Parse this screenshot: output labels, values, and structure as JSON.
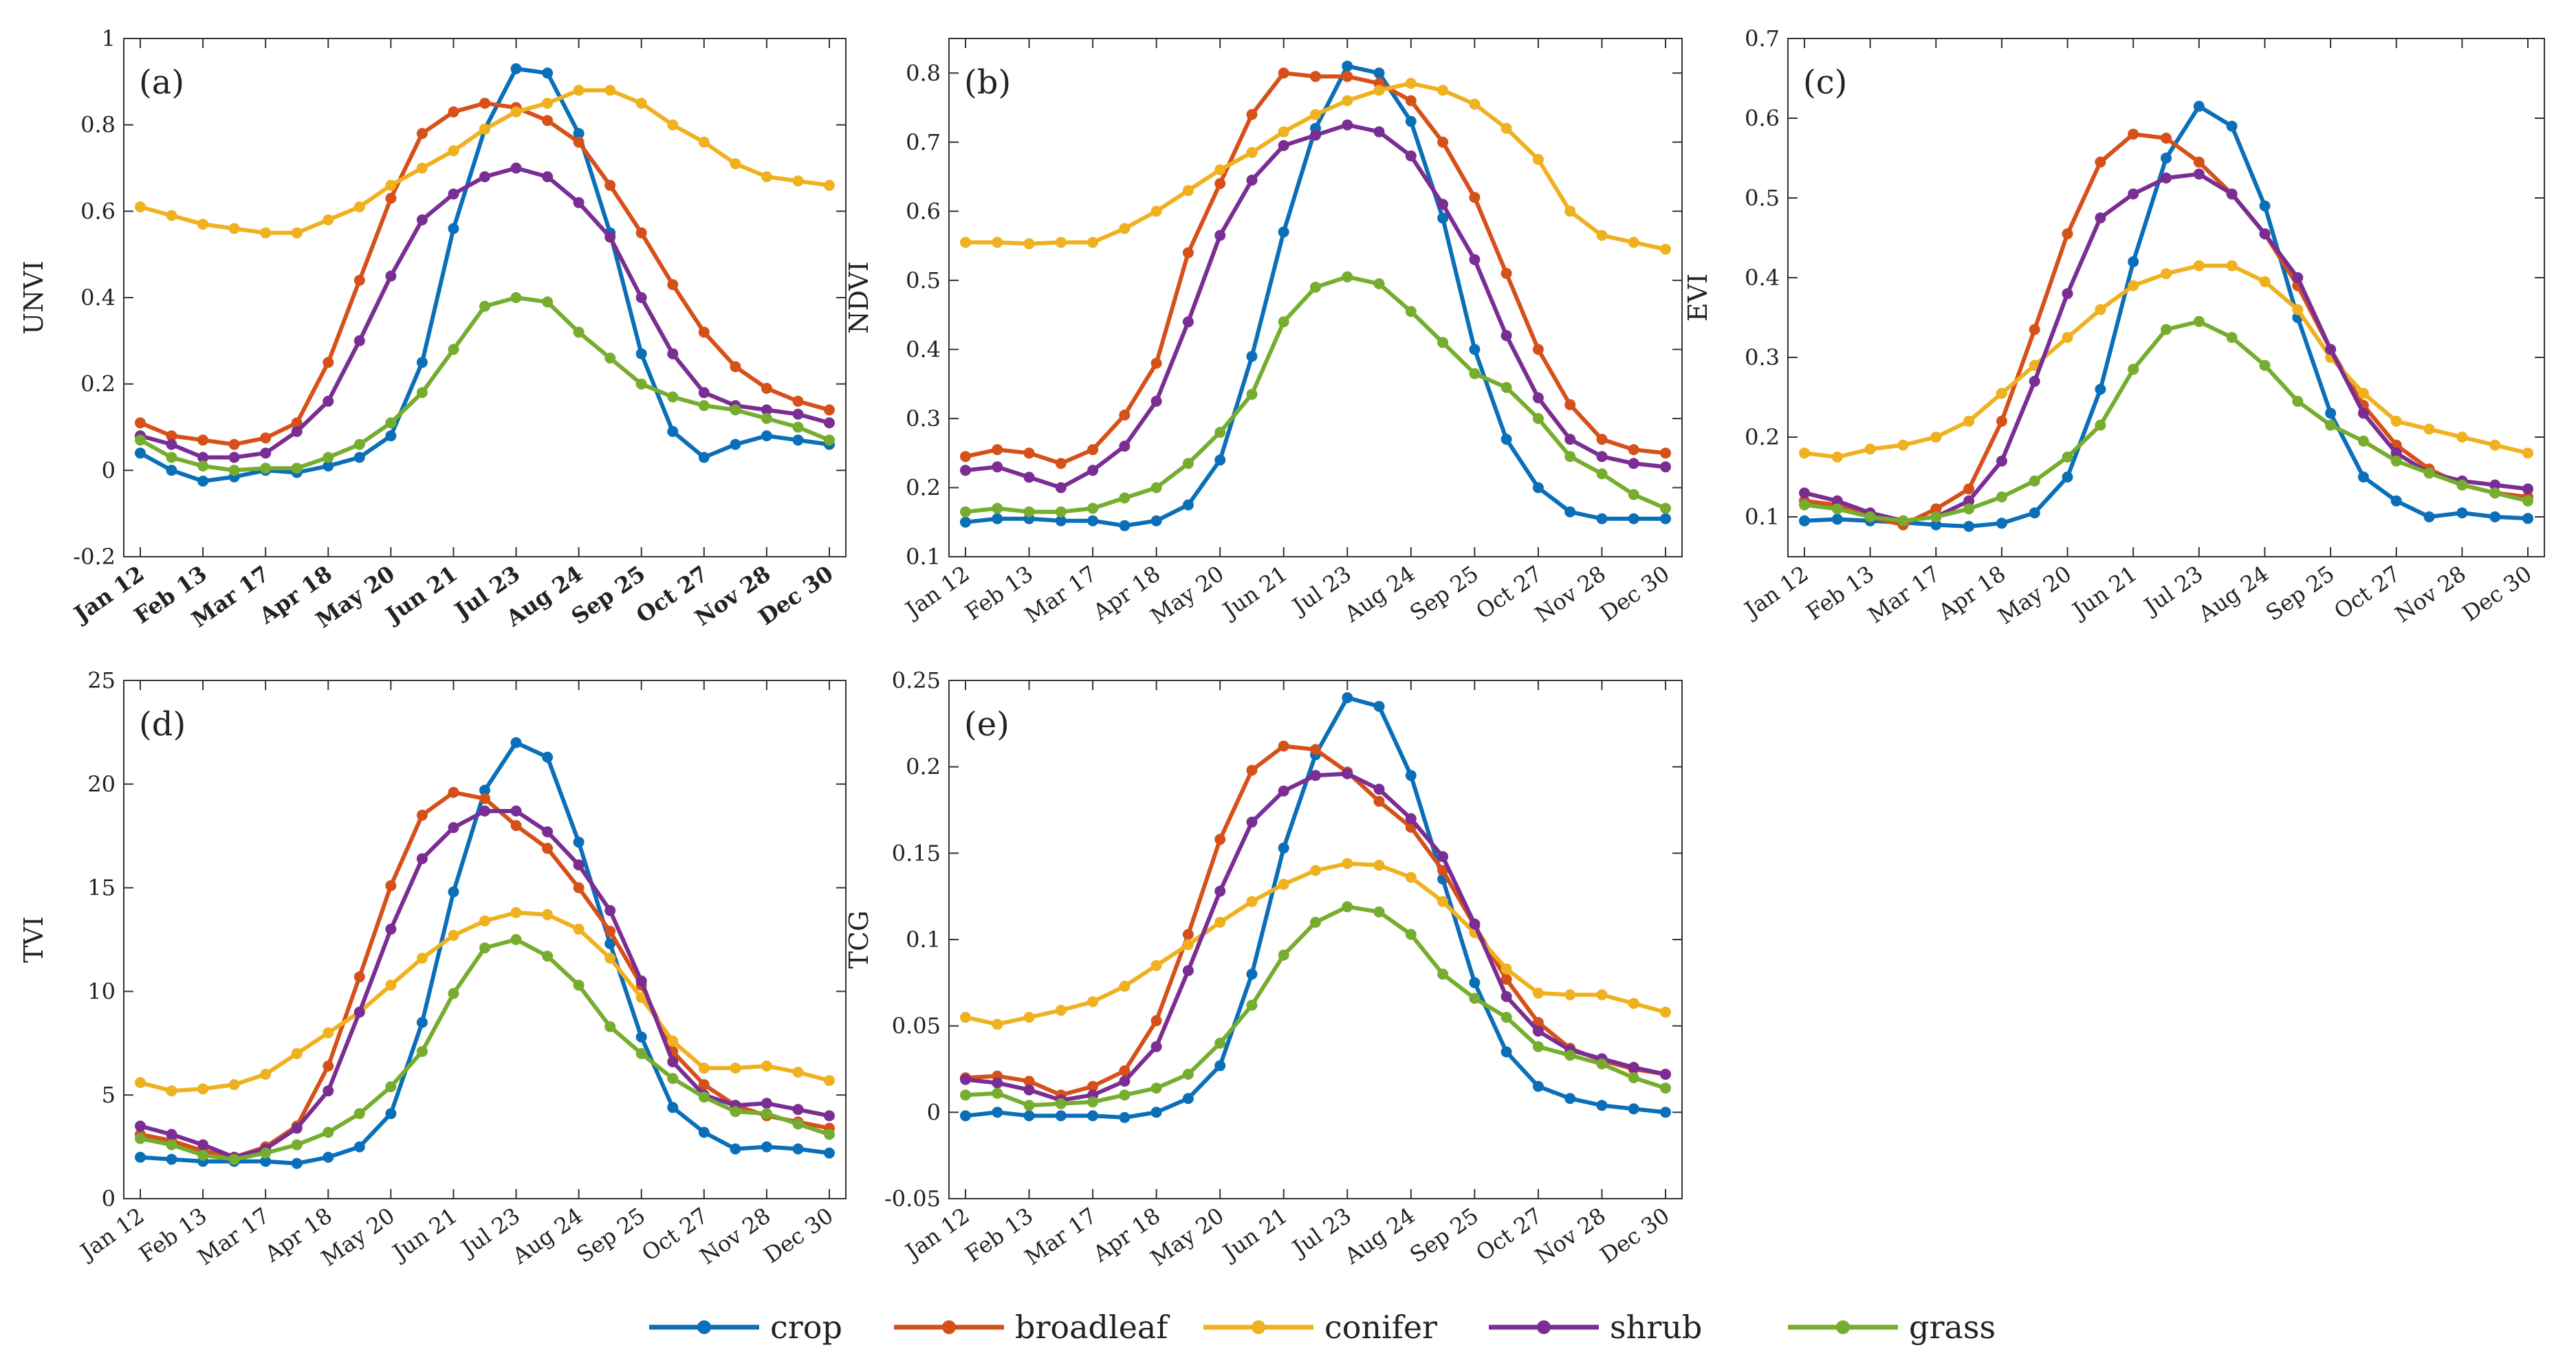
{
  "x_labels": [
    "Jan 12",
    "Feb 13",
    "Mar 17",
    "Apr 18",
    "May 20",
    "Jun 21",
    "Jul 23",
    "Aug 24",
    "Sep 25",
    "Oct 27",
    "Nov 28",
    "Dec 30"
  ],
  "series_meta": [
    {
      "key": "crop",
      "name": "crop",
      "color": "#0a6fb8"
    },
    {
      "key": "broadleaf",
      "name": "broadleaf",
      "color": "#d6501a"
    },
    {
      "key": "conifer",
      "name": "conifer",
      "color": "#efb11f"
    },
    {
      "key": "shrub",
      "name": "shrub",
      "color": "#7a2d92"
    },
    {
      "key": "grass",
      "name": "grass",
      "color": "#76ad2f"
    }
  ],
  "chart_data": [
    {
      "type": "line",
      "label": "(a)",
      "ylabel": "UNVI",
      "ylim": [
        -0.2,
        1
      ],
      "yticks": [
        -0.2,
        0,
        0.2,
        0.4,
        0.6,
        0.8,
        1
      ],
      "ytick_labels": [
        "-0.2",
        "0",
        "0.2",
        "0.4",
        "0.6",
        "0.8",
        "1"
      ],
      "bold_xticks": true,
      "series": {
        "crop": [
          0.04,
          0.0,
          -0.025,
          -0.015,
          0.0,
          -0.005,
          0.01,
          0.03,
          0.08,
          0.25,
          0.56,
          0.79,
          0.93,
          0.92,
          0.78,
          0.55,
          0.27,
          0.09,
          0.03,
          0.06,
          0.08,
          0.07,
          0.06
        ],
        "broadleaf": [
          0.11,
          0.08,
          0.07,
          0.06,
          0.075,
          0.11,
          0.25,
          0.44,
          0.63,
          0.78,
          0.83,
          0.85,
          0.84,
          0.81,
          0.76,
          0.66,
          0.55,
          0.43,
          0.32,
          0.24,
          0.19,
          0.16,
          0.14
        ],
        "conifer": [
          0.61,
          0.59,
          0.57,
          0.56,
          0.55,
          0.55,
          0.58,
          0.61,
          0.66,
          0.7,
          0.74,
          0.79,
          0.83,
          0.85,
          0.88,
          0.88,
          0.85,
          0.8,
          0.76,
          0.71,
          0.68,
          0.67,
          0.66
        ],
        "shrub": [
          0.08,
          0.06,
          0.03,
          0.03,
          0.04,
          0.09,
          0.16,
          0.3,
          0.45,
          0.58,
          0.64,
          0.68,
          0.7,
          0.68,
          0.62,
          0.54,
          0.4,
          0.27,
          0.18,
          0.15,
          0.14,
          0.13,
          0.11
        ],
        "grass": [
          0.07,
          0.03,
          0.01,
          0.0,
          0.005,
          0.005,
          0.03,
          0.06,
          0.11,
          0.18,
          0.28,
          0.38,
          0.4,
          0.39,
          0.32,
          0.26,
          0.2,
          0.17,
          0.15,
          0.14,
          0.12,
          0.1,
          0.07
        ]
      }
    },
    {
      "type": "line",
      "label": "(b)",
      "ylabel": "NDVI",
      "ylim": [
        0.1,
        0.85
      ],
      "yticks": [
        0.1,
        0.2,
        0.3,
        0.4,
        0.5,
        0.6,
        0.7,
        0.8
      ],
      "ytick_labels": [
        "0.1",
        "0.2",
        "0.3",
        "0.4",
        "0.5",
        "0.6",
        "0.7",
        "0.8"
      ],
      "bold_xticks": false,
      "series": {
        "crop": [
          0.15,
          0.155,
          0.155,
          0.152,
          0.152,
          0.145,
          0.152,
          0.175,
          0.24,
          0.39,
          0.57,
          0.72,
          0.81,
          0.8,
          0.73,
          0.59,
          0.4,
          0.27,
          0.2,
          0.165,
          0.155,
          0.155,
          0.155
        ],
        "broadleaf": [
          0.245,
          0.255,
          0.25,
          0.235,
          0.255,
          0.305,
          0.38,
          0.54,
          0.64,
          0.74,
          0.8,
          0.795,
          0.795,
          0.785,
          0.76,
          0.7,
          0.62,
          0.51,
          0.4,
          0.32,
          0.27,
          0.255,
          0.25
        ],
        "conifer": [
          0.555,
          0.555,
          0.553,
          0.555,
          0.555,
          0.575,
          0.6,
          0.63,
          0.66,
          0.685,
          0.715,
          0.74,
          0.76,
          0.775,
          0.785,
          0.775,
          0.755,
          0.72,
          0.675,
          0.6,
          0.565,
          0.555,
          0.545
        ],
        "shrub": [
          0.225,
          0.23,
          0.215,
          0.2,
          0.225,
          0.26,
          0.325,
          0.44,
          0.565,
          0.645,
          0.695,
          0.71,
          0.725,
          0.715,
          0.68,
          0.61,
          0.53,
          0.42,
          0.33,
          0.27,
          0.245,
          0.235,
          0.23
        ],
        "grass": [
          0.165,
          0.17,
          0.165,
          0.165,
          0.17,
          0.185,
          0.2,
          0.235,
          0.28,
          0.335,
          0.44,
          0.49,
          0.505,
          0.495,
          0.455,
          0.41,
          0.365,
          0.345,
          0.3,
          0.245,
          0.22,
          0.19,
          0.17
        ]
      }
    },
    {
      "type": "line",
      "label": "(c)",
      "ylabel": "EVI",
      "ylim": [
        0.05,
        0.7
      ],
      "yticks": [
        0.1,
        0.2,
        0.3,
        0.4,
        0.5,
        0.6,
        0.7
      ],
      "ytick_labels": [
        "0.1",
        "0.2",
        "0.3",
        "0.4",
        "0.5",
        "0.6",
        "0.7"
      ],
      "bold_xticks": false,
      "series": {
        "crop": [
          0.095,
          0.097,
          0.095,
          0.093,
          0.09,
          0.088,
          0.092,
          0.105,
          0.15,
          0.26,
          0.42,
          0.55,
          0.615,
          0.59,
          0.49,
          0.35,
          0.23,
          0.15,
          0.12,
          0.1,
          0.105,
          0.1,
          0.098
        ],
        "broadleaf": [
          0.12,
          0.115,
          0.1,
          0.09,
          0.11,
          0.135,
          0.22,
          0.335,
          0.455,
          0.545,
          0.58,
          0.575,
          0.545,
          0.505,
          0.455,
          0.39,
          0.31,
          0.24,
          0.19,
          0.16,
          0.14,
          0.13,
          0.125
        ],
        "conifer": [
          0.18,
          0.175,
          0.185,
          0.19,
          0.2,
          0.22,
          0.255,
          0.29,
          0.325,
          0.36,
          0.39,
          0.405,
          0.415,
          0.415,
          0.395,
          0.36,
          0.3,
          0.255,
          0.22,
          0.21,
          0.2,
          0.19,
          0.18
        ],
        "shrub": [
          0.13,
          0.12,
          0.105,
          0.095,
          0.1,
          0.12,
          0.17,
          0.27,
          0.38,
          0.475,
          0.505,
          0.525,
          0.53,
          0.505,
          0.455,
          0.4,
          0.31,
          0.23,
          0.18,
          0.155,
          0.145,
          0.14,
          0.135
        ],
        "grass": [
          0.115,
          0.11,
          0.1,
          0.095,
          0.1,
          0.11,
          0.125,
          0.145,
          0.175,
          0.215,
          0.285,
          0.335,
          0.345,
          0.325,
          0.29,
          0.245,
          0.215,
          0.195,
          0.17,
          0.155,
          0.14,
          0.13,
          0.12
        ]
      }
    },
    {
      "type": "line",
      "label": "(d)",
      "ylabel": "TVI",
      "ylim": [
        0,
        25
      ],
      "yticks": [
        0,
        5,
        10,
        15,
        20,
        25
      ],
      "ytick_labels": [
        "0",
        "5",
        "10",
        "15",
        "20",
        "25"
      ],
      "bold_xticks": false,
      "series": {
        "crop": [
          2.0,
          1.9,
          1.8,
          1.8,
          1.8,
          1.7,
          2.0,
          2.5,
          4.1,
          8.5,
          14.8,
          19.7,
          22.0,
          21.3,
          17.2,
          12.3,
          7.8,
          4.4,
          3.2,
          2.4,
          2.5,
          2.4,
          2.2
        ],
        "broadleaf": [
          3.1,
          2.8,
          2.3,
          2.0,
          2.5,
          3.5,
          6.4,
          10.7,
          15.1,
          18.5,
          19.6,
          19.3,
          18.0,
          16.9,
          15.0,
          12.9,
          10.3,
          7.1,
          5.5,
          4.5,
          4.0,
          3.7,
          3.4
        ],
        "conifer": [
          5.6,
          5.2,
          5.3,
          5.5,
          6.0,
          7.0,
          8.0,
          9.0,
          10.3,
          11.6,
          12.7,
          13.4,
          13.8,
          13.7,
          13.0,
          11.6,
          9.7,
          7.6,
          6.3,
          6.3,
          6.4,
          6.1,
          5.7
        ],
        "shrub": [
          3.5,
          3.1,
          2.6,
          2.0,
          2.4,
          3.4,
          5.2,
          9.0,
          13.0,
          16.4,
          17.9,
          18.7,
          18.7,
          17.7,
          16.1,
          13.9,
          10.5,
          6.6,
          5.0,
          4.5,
          4.6,
          4.3,
          4.0
        ],
        "grass": [
          2.9,
          2.6,
          2.1,
          1.9,
          2.2,
          2.6,
          3.2,
          4.1,
          5.4,
          7.1,
          9.9,
          12.1,
          12.5,
          11.7,
          10.3,
          8.3,
          7.0,
          5.8,
          4.9,
          4.2,
          4.1,
          3.6,
          3.1
        ]
      }
    },
    {
      "type": "line",
      "label": "(e)",
      "ylabel": "TCG",
      "ylim": [
        -0.05,
        0.25
      ],
      "yticks": [
        -0.05,
        0,
        0.05,
        0.1,
        0.15,
        0.2,
        0.25
      ],
      "ytick_labels": [
        "-0.05",
        "0",
        "0.05",
        "0.1",
        "0.15",
        "0.2",
        "0.25"
      ],
      "bold_xticks": false,
      "series": {
        "crop": [
          -0.002,
          0.0,
          -0.002,
          -0.002,
          -0.002,
          -0.003,
          0.0,
          0.008,
          0.027,
          0.08,
          0.153,
          0.207,
          0.24,
          0.235,
          0.195,
          0.135,
          0.075,
          0.035,
          0.015,
          0.008,
          0.004,
          0.002,
          0.0
        ],
        "broadleaf": [
          0.02,
          0.021,
          0.018,
          0.01,
          0.015,
          0.024,
          0.053,
          0.103,
          0.158,
          0.198,
          0.212,
          0.21,
          0.197,
          0.18,
          0.165,
          0.14,
          0.108,
          0.077,
          0.052,
          0.037,
          0.03,
          0.025,
          0.022
        ],
        "conifer": [
          0.055,
          0.051,
          0.055,
          0.059,
          0.064,
          0.073,
          0.085,
          0.097,
          0.11,
          0.122,
          0.132,
          0.14,
          0.144,
          0.143,
          0.136,
          0.122,
          0.104,
          0.083,
          0.069,
          0.068,
          0.068,
          0.063,
          0.058
        ],
        "shrub": [
          0.019,
          0.017,
          0.013,
          0.007,
          0.01,
          0.018,
          0.038,
          0.082,
          0.128,
          0.168,
          0.186,
          0.195,
          0.196,
          0.187,
          0.17,
          0.148,
          0.109,
          0.067,
          0.047,
          0.036,
          0.031,
          0.026,
          0.022
        ],
        "grass": [
          0.01,
          0.011,
          0.004,
          0.005,
          0.006,
          0.01,
          0.014,
          0.022,
          0.04,
          0.062,
          0.091,
          0.11,
          0.119,
          0.116,
          0.103,
          0.08,
          0.066,
          0.055,
          0.038,
          0.033,
          0.028,
          0.02,
          0.014
        ]
      }
    }
  ]
}
